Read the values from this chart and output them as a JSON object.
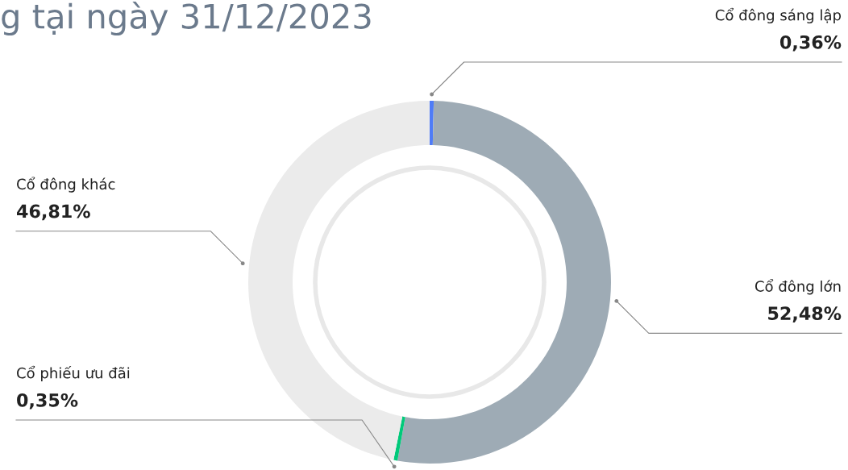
{
  "chart_data": {
    "type": "donut",
    "title": "g tại ngày 31/12/2023",
    "categories": [
      "Cổ đông sáng lập",
      "Cổ đông lớn",
      "Cổ phiếu ưu đãi",
      "Cổ đông khác"
    ],
    "values": [
      0.36,
      52.48,
      0.35,
      46.81
    ],
    "colors": [
      "#4f7cf7",
      "#9eabb5",
      "#00c97a",
      "#ebebeb"
    ],
    "value_labels": [
      "0,36%",
      "52,48%",
      "0,35%",
      "46,81%"
    ],
    "legend": false
  }
}
